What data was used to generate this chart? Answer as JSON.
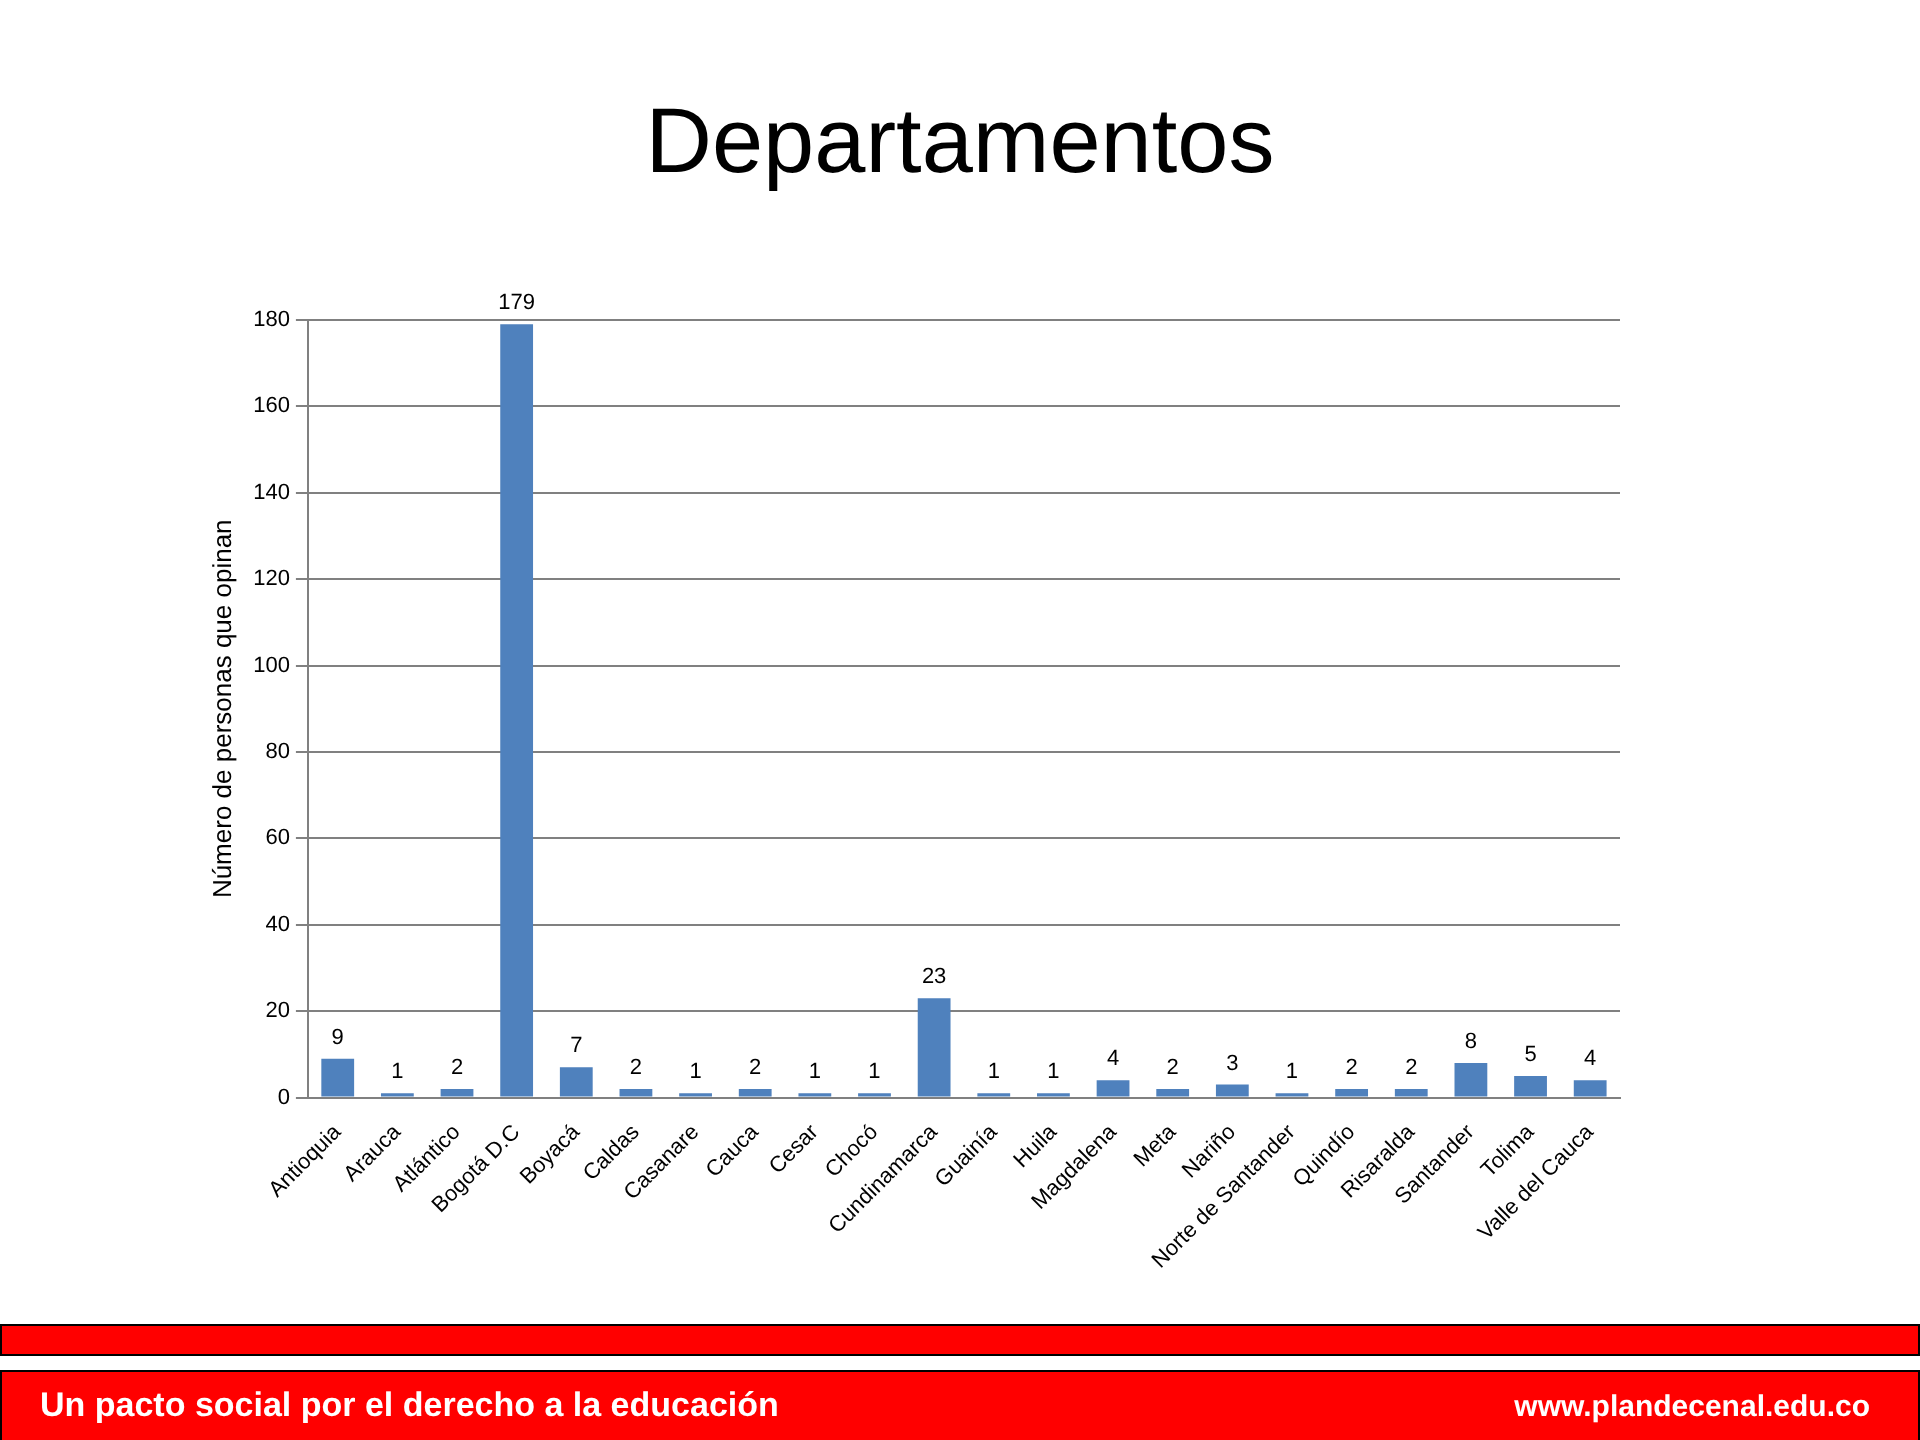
{
  "chart_data": {
    "type": "bar",
    "title": "Departamentos",
    "ylabel": "Número de personas que opinan",
    "categories": [
      "Antioquia",
      "Arauca",
      "Atlántico",
      "Bogotá D.C",
      "Boyacá",
      "Caldas",
      "Casanare",
      "Cauca",
      "Cesar",
      "Chocó",
      "Cundinamarca",
      "Guainía",
      "Huila",
      "Magdalena",
      "Meta",
      "Nariño",
      "Norte de Santander",
      "Quindío",
      "Risaralda",
      "Santander",
      "Tolima",
      "Valle del Cauca"
    ],
    "values": [
      9,
      1,
      2,
      179,
      7,
      2,
      1,
      2,
      1,
      1,
      23,
      1,
      1,
      4,
      2,
      3,
      1,
      2,
      2,
      8,
      5,
      4
    ],
    "color": "#4f81bd",
    "ylim": [
      0,
      180
    ],
    "yticks": [
      0,
      20,
      40,
      60,
      80,
      100,
      120,
      140,
      160,
      180
    ],
    "grid": "y",
    "data_labels": true,
    "legend": false,
    "annotations": [
      "Un pacto social por el derecho a la educación",
      "www.plandecenal.edu.co"
    ]
  }
}
